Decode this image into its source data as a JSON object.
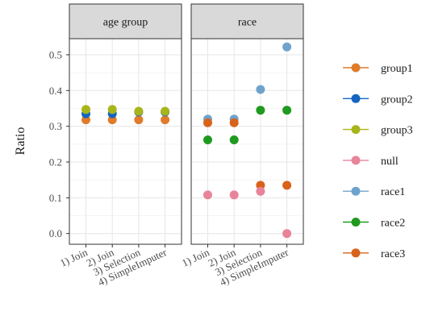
{
  "chart_data": {
    "type": "scatter",
    "ylabel": "Ratio",
    "ylim": [
      -0.03,
      0.545
    ],
    "yticks": [
      0.0,
      0.1,
      0.2,
      0.3,
      0.4,
      0.5
    ],
    "ytick_labels": [
      "0.0",
      "0.1",
      "0.2",
      "0.3",
      "0.4",
      "0.5"
    ],
    "categories": [
      "1) Join",
      "2) Join",
      "3) Selection",
      "4) SimpleImputer"
    ],
    "grid": true,
    "legend_position": "right",
    "legend": [
      {
        "name": "group1",
        "color": "#e07b2a"
      },
      {
        "name": "group2",
        "color": "#1565c0"
      },
      {
        "name": "group3",
        "color": "#a8b51a"
      },
      {
        "name": "null",
        "color": "#e8849a"
      },
      {
        "name": "race1",
        "color": "#6fa3cc"
      },
      {
        "name": "race2",
        "color": "#1f9a1f"
      },
      {
        "name": "race3",
        "color": "#d9621a"
      }
    ],
    "facets": [
      {
        "title": "age group",
        "series": [
          {
            "name": "group1",
            "values": [
              0.318,
              0.318,
              0.318,
              0.318
            ]
          },
          {
            "name": "group2",
            "values": [
              0.335,
              0.335,
              0.34,
              0.34
            ]
          },
          {
            "name": "group3",
            "values": [
              0.347,
              0.347,
              0.342,
              0.342
            ]
          }
        ]
      },
      {
        "title": "race",
        "series": [
          {
            "name": "race1",
            "values": [
              0.32,
              0.32,
              0.403,
              0.522
            ]
          },
          {
            "name": "race2",
            "values": [
              0.262,
              0.262,
              0.345,
              0.345
            ]
          },
          {
            "name": "race3",
            "values": [
              0.31,
              0.31,
              0.135,
              0.135
            ]
          },
          {
            "name": "null",
            "values": [
              0.108,
              0.108,
              0.118,
              0.0
            ]
          }
        ]
      }
    ]
  }
}
